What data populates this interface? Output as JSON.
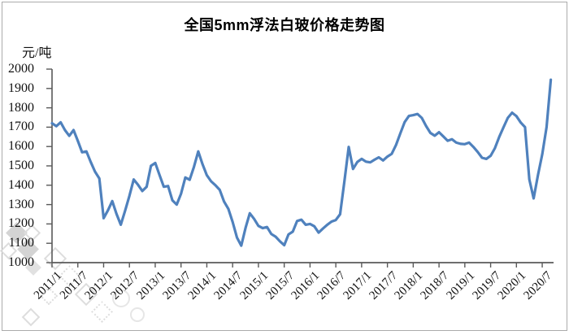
{
  "window": {
    "background": "#ffffff",
    "frame_color": "#ababab"
  },
  "chart_data": {
    "type": "line",
    "title": "全国5mm浮法白玻价格走势图",
    "ylabel": "元/吨",
    "xlabel": "",
    "ylim": [
      1000,
      2000
    ],
    "y_ticks": [
      "2000",
      "1900",
      "1800",
      "1700",
      "1600",
      "1500",
      "1400",
      "1300",
      "1200",
      "1100",
      "1000"
    ],
    "x_tick_labels": [
      "2011/1",
      "2011/7",
      "2012/1",
      "2012/7",
      "2013/1",
      "2013/7",
      "2014/1",
      "2014/7",
      "2015/1",
      "2015/7",
      "2016/1",
      "2016/7",
      "2017/1",
      "2017/7",
      "2018/1",
      "2018/7",
      "2019/1",
      "2019/7",
      "2020/1",
      "2020/7"
    ],
    "grid": false,
    "legend_position": "none",
    "line_color": "#4F81BD",
    "axis_color": "#595959",
    "series": [
      {
        "name": "全国5mm浮法白玻价格",
        "start": "2011/1",
        "interval": "monthly",
        "unit": "元/吨",
        "values": [
          1720,
          1705,
          1725,
          1685,
          1655,
          1685,
          1630,
          1570,
          1575,
          1520,
          1470,
          1435,
          1230,
          1270,
          1318,
          1252,
          1196,
          1268,
          1345,
          1430,
          1402,
          1370,
          1392,
          1500,
          1515,
          1452,
          1392,
          1396,
          1322,
          1300,
          1356,
          1440,
          1428,
          1495,
          1575,
          1508,
          1452,
          1420,
          1400,
          1376,
          1316,
          1278,
          1210,
          1130,
          1088,
          1180,
          1255,
          1226,
          1190,
          1178,
          1184,
          1148,
          1134,
          1110,
          1090,
          1146,
          1160,
          1215,
          1222,
          1196,
          1200,
          1188,
          1155,
          1176,
          1196,
          1212,
          1220,
          1250,
          1420,
          1598,
          1484,
          1520,
          1536,
          1522,
          1518,
          1532,
          1544,
          1528,
          1548,
          1562,
          1608,
          1668,
          1726,
          1758,
          1762,
          1768,
          1748,
          1706,
          1670,
          1656,
          1674,
          1652,
          1630,
          1638,
          1620,
          1614,
          1612,
          1620,
          1598,
          1572,
          1542,
          1536,
          1552,
          1592,
          1650,
          1700,
          1748,
          1775,
          1757,
          1724,
          1700,
          1430,
          1332,
          1452,
          1560,
          1700,
          1945
        ]
      }
    ]
  }
}
